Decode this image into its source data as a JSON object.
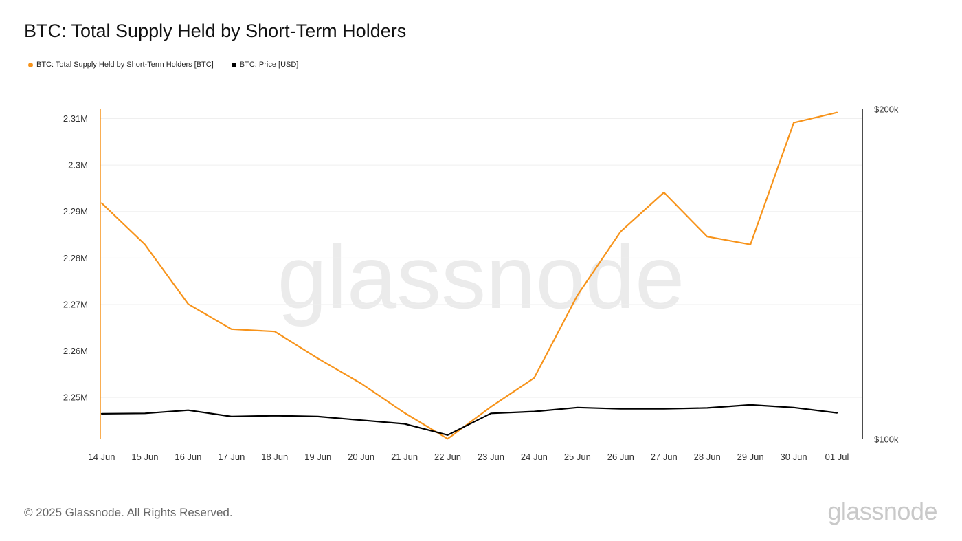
{
  "header": {
    "title": "BTC: Total Supply Held by Short-Term Holders"
  },
  "legend": {
    "items": [
      {
        "label": "BTC: Total Supply Held by Short-Term Holders [BTC]",
        "color": "#f7931a"
      },
      {
        "label": "BTC: Price [USD]",
        "color": "#000000"
      }
    ]
  },
  "watermark": "glassnode",
  "footer": {
    "copyright": "© 2025 Glassnode. All Rights Reserved.",
    "brand": "glassnode"
  },
  "chart_data": {
    "type": "line",
    "title": "BTC: Total Supply Held by Short-Term Holders",
    "x": [
      "14 Jun",
      "15 Jun",
      "16 Jun",
      "17 Jun",
      "18 Jun",
      "19 Jun",
      "20 Jun",
      "21 Jun",
      "22 Jun",
      "23 Jun",
      "24 Jun",
      "25 Jun",
      "26 Jun",
      "27 Jun",
      "28 Jun",
      "29 Jun",
      "30 Jun",
      "01 Jul"
    ],
    "left_axis": {
      "ticks": [
        2250000,
        2260000,
        2270000,
        2280000,
        2290000,
        2300000,
        2310000
      ],
      "tick_labels": [
        "2.25M",
        "2.26M",
        "2.27M",
        "2.28M",
        "2.29M",
        "2.3M",
        "2.31M"
      ],
      "ylim": [
        2241000,
        2312000
      ],
      "scale": "linear"
    },
    "right_axis": {
      "ticks": [
        100000,
        200000
      ],
      "tick_labels": [
        "$100k",
        "$200k"
      ],
      "ylim": [
        100000,
        200000
      ],
      "scale": "log"
    },
    "series": [
      {
        "name": "BTC: Total Supply Held by Short-Term Holders [BTC]",
        "axis": "left",
        "color": "#f7931a",
        "values": [
          2291800,
          2282900,
          2270100,
          2264700,
          2264200,
          2258400,
          2253000,
          2246700,
          2241100,
          2248000,
          2254200,
          2272000,
          2285700,
          2294100,
          2284600,
          2282900,
          2309100,
          2311300
        ]
      },
      {
        "name": "BTC: Price [USD]",
        "axis": "right",
        "color": "#000000",
        "values": [
          105500,
          105600,
          106300,
          104900,
          105100,
          104900,
          104100,
          103300,
          100900,
          105600,
          106000,
          106900,
          106600,
          106600,
          106800,
          107500,
          106900,
          105700
        ]
      }
    ],
    "grid": true
  }
}
